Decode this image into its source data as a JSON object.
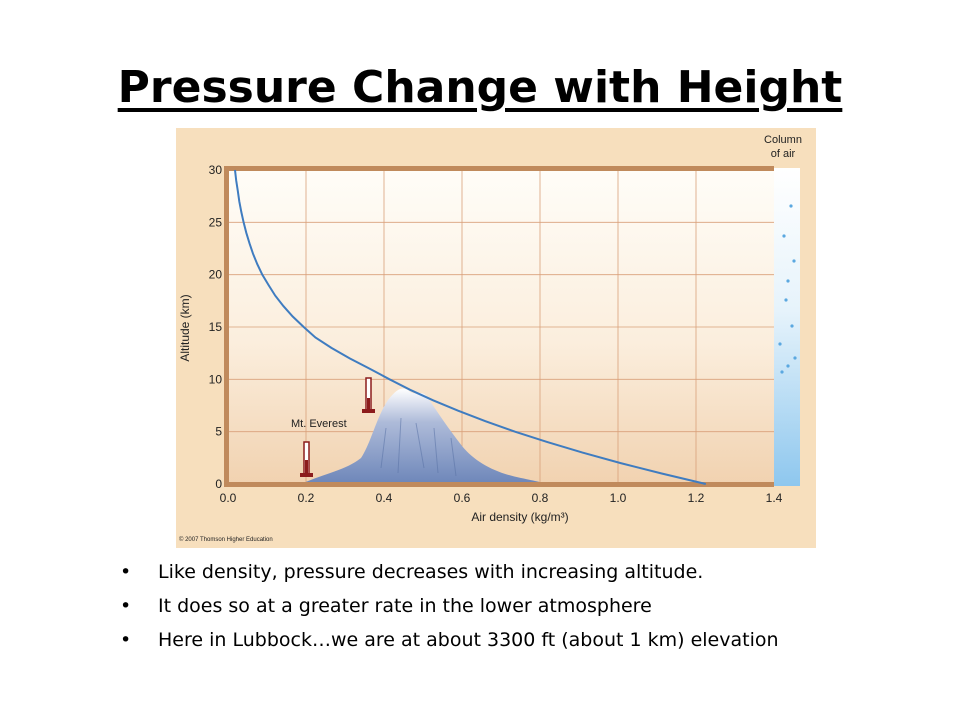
{
  "slide": {
    "title": "Pressure Change with Height",
    "bullets": [
      "Like density, pressure decreases with increasing altitude.",
      "It does so at a greater rate in the lower atmosphere",
      "Here in Lubbock…we are at about 3300 ft (about 1 km) elevation"
    ],
    "bullet_symbol": "•"
  },
  "chart_data": {
    "type": "line",
    "xlabel": "Air density (kg/m³)",
    "ylabel": "Altitude (km)",
    "xlim": [
      0,
      1.4
    ],
    "ylim": [
      0,
      30
    ],
    "x_ticks": [
      "0.0",
      "0.2",
      "0.4",
      "0.6",
      "0.8",
      "1.0",
      "1.2",
      "1.4"
    ],
    "y_ticks": [
      "0",
      "5",
      "10",
      "15",
      "20",
      "25",
      "30"
    ],
    "grid": true,
    "series": [
      {
        "x": [
          1.225,
          1.112,
          1.007,
          0.909,
          0.819,
          0.736,
          0.66,
          0.59,
          0.526,
          0.467,
          0.414,
          0.364,
          0.312,
          0.265,
          0.224,
          0.194,
          0.166,
          0.142,
          0.121,
          0.104,
          0.088,
          0.075,
          0.064,
          0.055,
          0.047,
          0.04,
          0.034,
          0.029,
          0.025,
          0.021,
          0.018
        ],
        "y": [
          0,
          1,
          2,
          3,
          4,
          5,
          6,
          7,
          8,
          9,
          10,
          11,
          12,
          13,
          14,
          15,
          16,
          17,
          18,
          19,
          20,
          21,
          22,
          23,
          24,
          25,
          26,
          27,
          28,
          29,
          30
        ]
      }
    ],
    "annotations": {
      "everest": "Mt. Everest",
      "column": [
        "Column",
        "of air"
      ],
      "credit": "© 2007 Thomson Higher Education"
    },
    "colors": {
      "panel": "#f7dfbd",
      "frame": "#c08a5c",
      "grid": "#d9a07a",
      "curve": "#3f7cc0",
      "mountain": "#6d86b9",
      "column": "#9ecdf0",
      "thermometer": "#8c1c1c"
    }
  }
}
